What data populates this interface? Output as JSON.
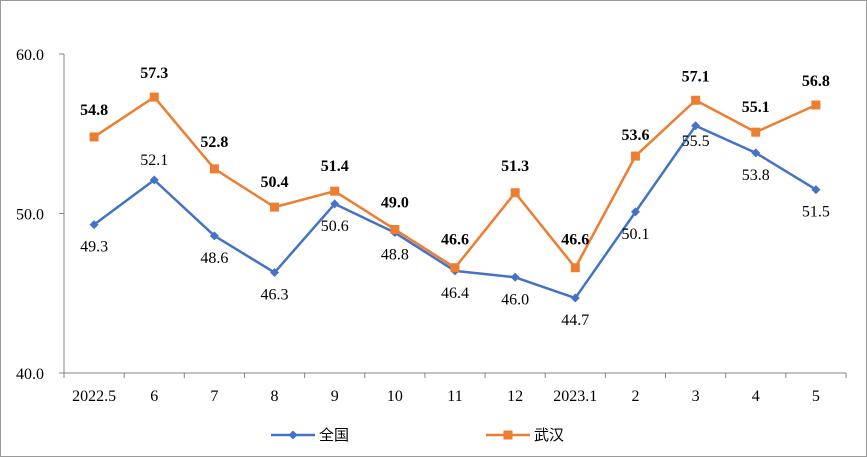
{
  "chart_data": {
    "type": "line",
    "categories": [
      "2022.5",
      "6",
      "7",
      "8",
      "9",
      "10",
      "11",
      "12",
      "2023.1",
      "2",
      "3",
      "4",
      "5"
    ],
    "ylim": [
      40.0,
      60.0
    ],
    "yticks": [
      "40.0",
      "50.0",
      "60.0"
    ],
    "grid": false,
    "legend_position": "bottom",
    "series": [
      {
        "name": "全国",
        "color": "#4472C4",
        "marker": "diamond",
        "values": [
          49.3,
          52.1,
          48.6,
          46.3,
          50.6,
          48.8,
          46.4,
          46.0,
          44.7,
          50.1,
          55.5,
          53.8,
          51.5
        ],
        "labels": [
          "49.3",
          "52.1",
          "48.6",
          "46.3",
          "50.6",
          "48.8",
          "46.4",
          "46.0",
          "44.7",
          "50.1",
          "55.5",
          "53.8",
          "51.5"
        ]
      },
      {
        "name": "武汉",
        "color": "#ED7D31",
        "marker": "square",
        "values": [
          54.8,
          57.3,
          52.8,
          50.4,
          51.4,
          49.0,
          46.6,
          51.3,
          46.6,
          53.6,
          57.1,
          55.1,
          56.8
        ],
        "labels": [
          "54.8",
          "57.3",
          "52.8",
          "50.4",
          "51.4",
          "49.0",
          "46.6",
          "51.3",
          "46.6",
          "53.6",
          "57.1",
          "55.1",
          "56.8"
        ]
      }
    ]
  }
}
